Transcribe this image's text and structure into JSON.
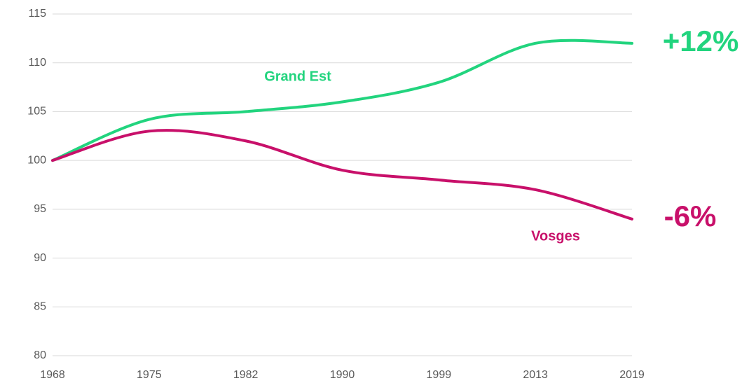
{
  "chart_data": {
    "type": "line",
    "categories": [
      "1968",
      "1975",
      "1982",
      "1990",
      "1999",
      "2013",
      "2019"
    ],
    "series": [
      {
        "name": "Grand Est",
        "color": "#22d47e",
        "values": [
          100,
          104.2,
          105,
          106,
          108,
          112,
          112
        ]
      },
      {
        "name": "Vosges",
        "color": "#c8106a",
        "values": [
          100,
          103,
          102,
          99,
          98,
          97,
          94
        ]
      }
    ],
    "annotations": [
      "+12%",
      "-6%"
    ],
    "ylim": [
      80,
      115
    ],
    "yticks": [
      80,
      85,
      90,
      95,
      100,
      105,
      110,
      115
    ],
    "grid": true
  }
}
